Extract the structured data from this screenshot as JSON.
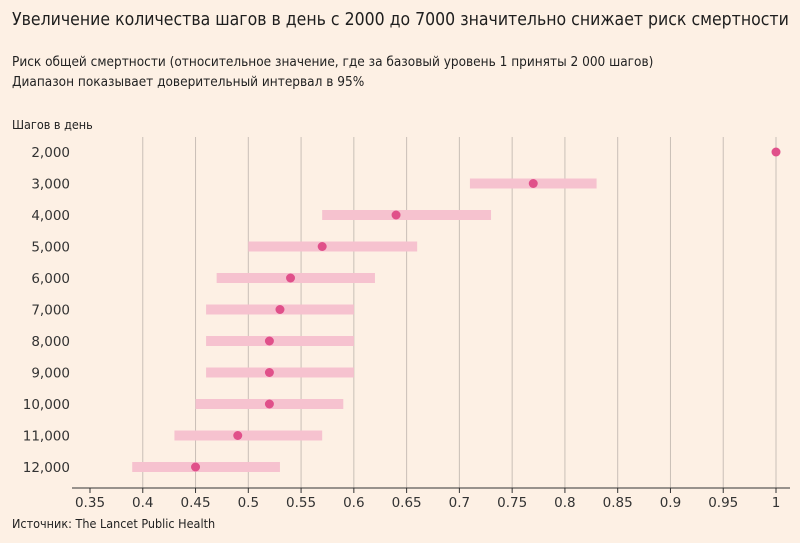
{
  "chart_data": {
    "type": "interval",
    "title": "Увеличение количества шагов в день с 2000 до 7000 значительно снижает риск смертности",
    "subtitle_line1": "Риск общей смертности (относительное значение, где за базовый уровень 1 приняты 2 000 шагов)",
    "subtitle_line2": "Диапазон показывает доверительный интервал в 95%",
    "ylabel": "Шагов в день",
    "source": "Источник: The Lancet Public Health",
    "xlim": [
      0.35,
      1.0
    ],
    "xticks": [
      0.35,
      0.4,
      0.45,
      0.5,
      0.55,
      0.6,
      0.65,
      0.7,
      0.75,
      0.8,
      0.85,
      0.9,
      0.95,
      1.0
    ],
    "xtick_labels": [
      "0.35",
      "0.4",
      "0.45",
      "0.5",
      "0.55",
      "0.6",
      "0.65",
      "0.7",
      "0.75",
      "0.8",
      "0.85",
      "0.9",
      "0.95",
      "1"
    ],
    "categories": [
      "2,000",
      "3,000",
      "4,000",
      "5,000",
      "6,000",
      "7,000",
      "8,000",
      "9,000",
      "10,000",
      "11,000",
      "12,000"
    ],
    "points": [
      1.0,
      0.77,
      0.64,
      0.57,
      0.54,
      0.53,
      0.52,
      0.52,
      0.52,
      0.49,
      0.45
    ],
    "lower": [
      null,
      0.71,
      0.57,
      0.5,
      0.47,
      0.46,
      0.46,
      0.46,
      0.45,
      0.43,
      0.39
    ],
    "upper": [
      null,
      0.83,
      0.73,
      0.66,
      0.62,
      0.6,
      0.6,
      0.6,
      0.59,
      0.57,
      0.53
    ],
    "colors": {
      "background": "#fdf0e4",
      "point": "#e0508a",
      "interval": "#f6c2cf",
      "grid": "#c9bfb7",
      "axis": "#333333"
    }
  }
}
